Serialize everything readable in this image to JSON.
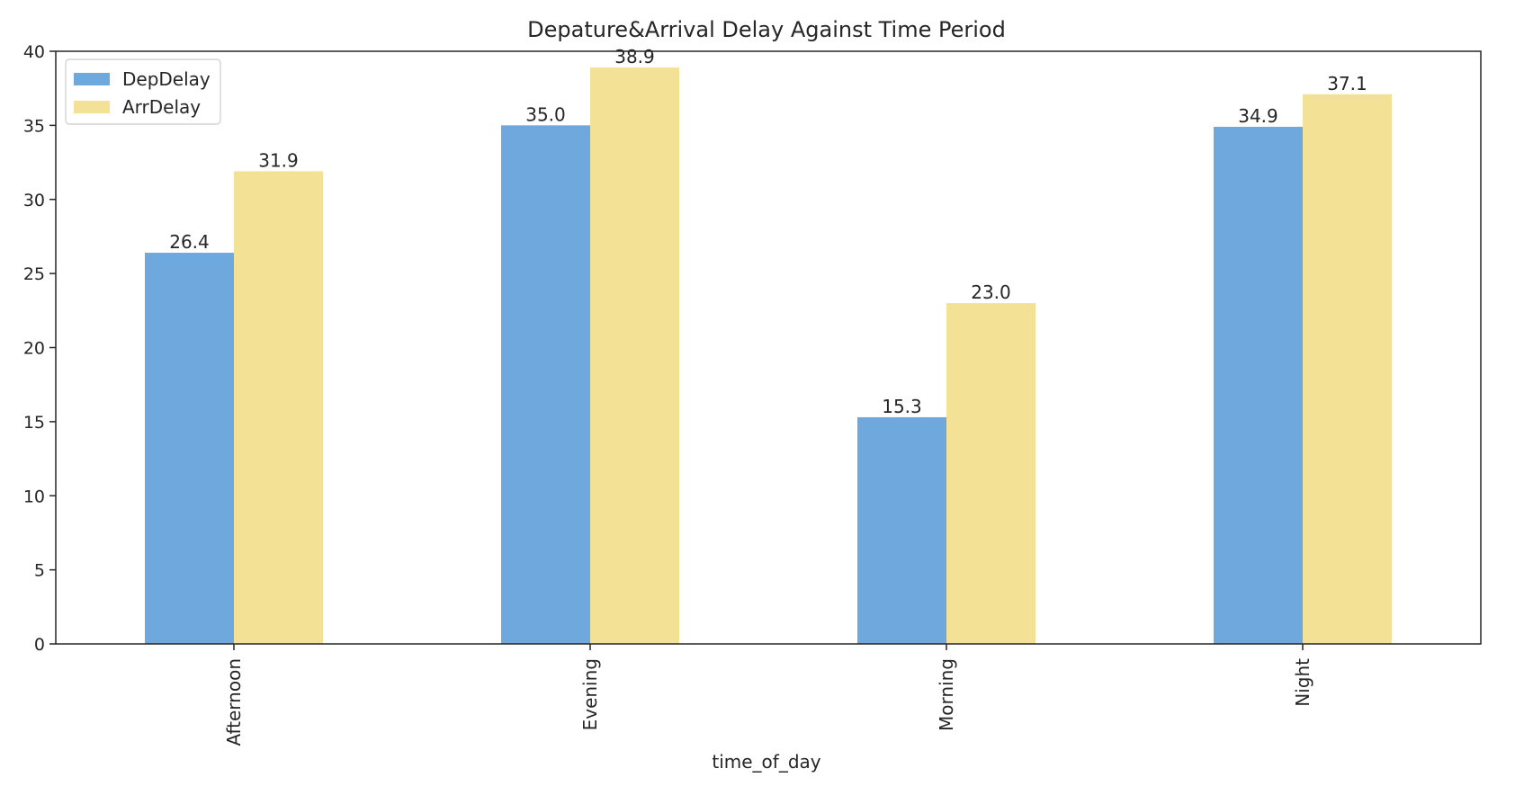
{
  "chart_data": {
    "type": "bar",
    "title": "Depature&Arrival Delay Against Time Period",
    "xlabel": "time_of_day",
    "ylabel": "",
    "categories": [
      "Afternoon",
      "Evening",
      "Morning",
      "Night"
    ],
    "series": [
      {
        "name": "DepDelay",
        "values": [
          26.4,
          35.0,
          15.3,
          34.9
        ],
        "labels": [
          "26.4",
          "35.0",
          "15.3",
          "34.9"
        ],
        "color": "#6fa8dc"
      },
      {
        "name": "ArrDelay",
        "values": [
          31.9,
          38.9,
          23.0,
          37.1
        ],
        "labels": [
          "31.9",
          "38.9",
          "23.0",
          "37.1"
        ],
        "color": "#f3e195"
      }
    ],
    "ylim": [
      0,
      40
    ],
    "yticks": [
      0,
      5,
      10,
      15,
      20,
      25,
      30,
      35,
      40
    ],
    "grid": false,
    "legend_position": "top-left"
  }
}
